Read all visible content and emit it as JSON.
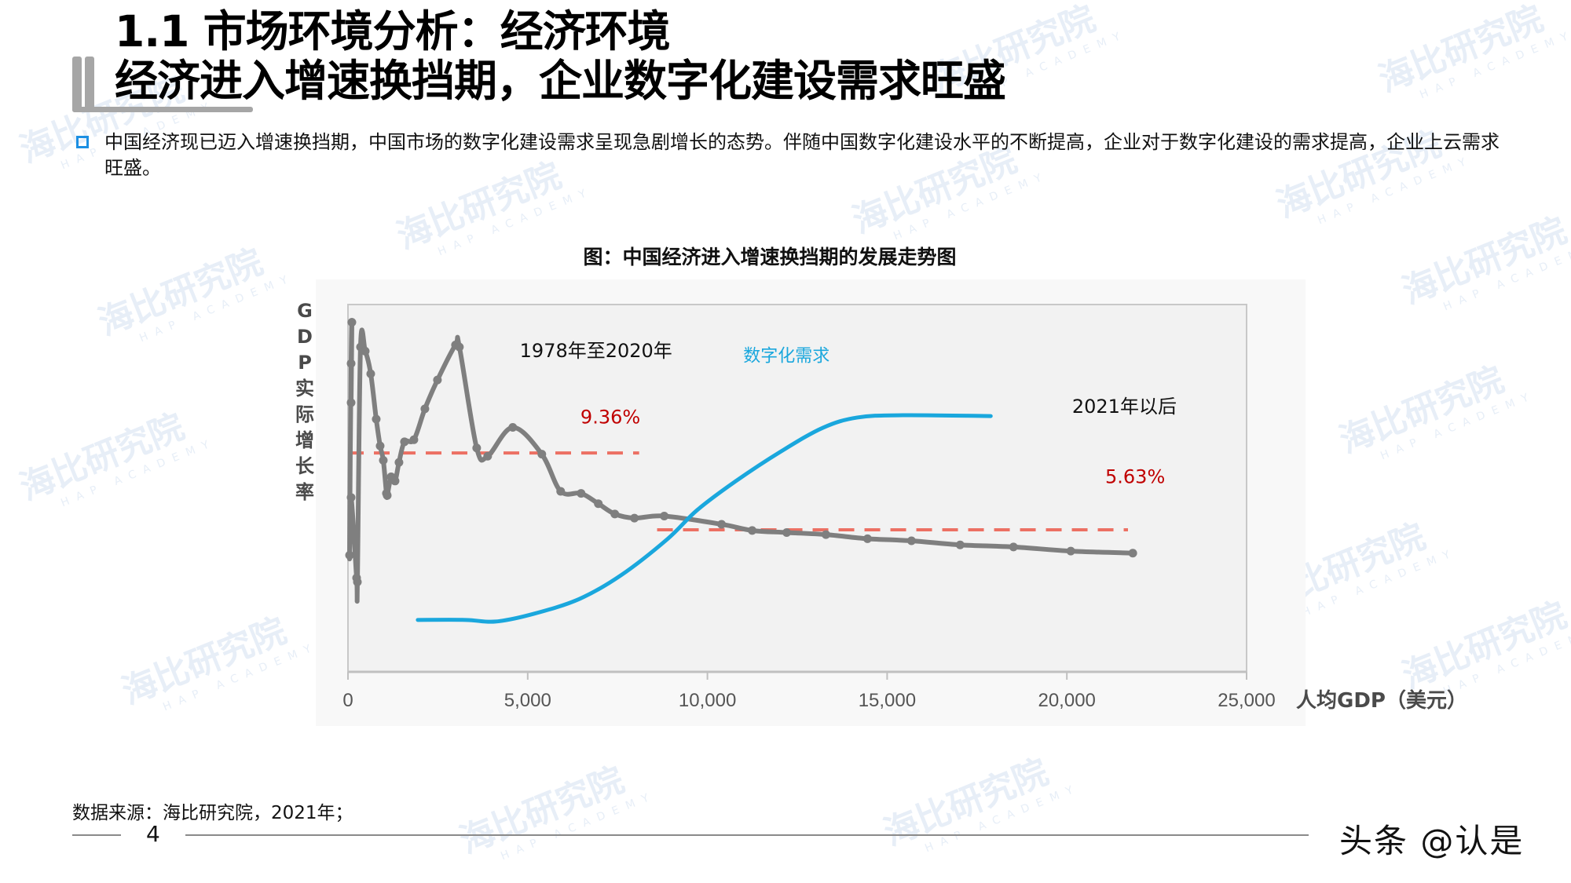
{
  "header": {
    "title_line1": "1.1 市场环境分析：经济环境",
    "title_line2": "经济进入增速换挡期，企业数字化建设需求旺盛"
  },
  "body": {
    "bullet_text": "中国经济现已迈入增速换挡期，中国市场的数字化建设需求呈现急剧增长的态势。伴随中国数字化建设水平的不断提高，企业对于数字化建设的需求提高，企业上云需求旺盛。"
  },
  "watermark": {
    "name": "海比研究院",
    "sub": "HAP ACADEMY"
  },
  "colors": {
    "gdp_line": "#7f7f7f",
    "demand_line": "#1aa7dd",
    "avg_line": "#ec7063",
    "avg_label": "#c00000",
    "bullet": "#1b8fe3",
    "plot_bg": "#f2f2f2"
  },
  "chart_data": {
    "type": "line",
    "title": "图：中国经济进入增速换挡期的发展走势图",
    "xlabel": "人均GDP（美元）",
    "ylabel": "GDP实际增长率",
    "ylabel_chars": [
      "G",
      "D",
      "P",
      "实",
      "际",
      "增",
      "长",
      "率"
    ],
    "xlim": [
      0,
      25000
    ],
    "ylim": [
      -1.26,
      16.56
    ],
    "x_ticks": [
      0,
      5000,
      10000,
      15000,
      20000,
      25000
    ],
    "x_tick_labels": [
      "0",
      "5,000",
      "10,000",
      "15,000",
      "20,000",
      "25,000"
    ],
    "grid": false,
    "series": [
      {
        "name": "GDP实际增长率",
        "color": "#7f7f7f",
        "markers": true,
        "x": [
          87,
          109,
          87,
          44,
          87,
          240,
          262,
          349,
          480,
          633,
          786,
          895,
          983,
          1070,
          1092,
          1201,
          1310,
          1419,
          1572,
          1834,
          2140,
          2489,
          2991,
          3100,
          3581,
          3886,
          4585,
          5393,
          5917,
          6485,
          6965,
          7424,
          7969,
          8799,
          10393,
          11245,
          12205,
          13297,
          14454,
          15677,
          17031,
          18515,
          20109,
          21834
        ],
        "y": [
          11.8,
          15.7,
          13.7,
          4.4,
          7.2,
          3.3,
          3.1,
          14.5,
          14.3,
          13.2,
          11.0,
          9.7,
          9.0,
          7.4,
          7.3,
          8.2,
          8.0,
          8.9,
          9.9,
          10.0,
          11.5,
          12.9,
          14.6,
          14.5,
          9.6,
          9.2,
          10.6,
          9.3,
          7.5,
          7.4,
          6.9,
          6.4,
          6.2,
          6.3,
          5.9,
          5.6,
          5.5,
          5.4,
          5.2,
          5.1,
          4.9,
          4.8,
          4.6,
          4.5
        ]
      },
      {
        "name": "数字化需求",
        "color": "#1aa7dd",
        "markers": false,
        "x": [
          1943,
          3275,
          4105,
          5175,
          6441,
          7598,
          8886,
          9716,
          10786,
          12052,
          13210,
          14170,
          15437,
          17882
        ],
        "y": [
          1.26,
          1.26,
          1.18,
          1.56,
          2.28,
          3.43,
          5.18,
          6.59,
          7.99,
          9.44,
          10.58,
          11.08,
          11.19,
          11.15
        ]
      }
    ],
    "reference_lines": [
      {
        "label": "9.36%",
        "y": 9.36,
        "x_from": 0,
        "x_to": 8100,
        "period": "1978年至2020年"
      },
      {
        "label": "5.63%",
        "y": 5.63,
        "x_from": 8600,
        "x_to": 21700,
        "period": "2021年以后"
      }
    ],
    "annotations": [
      {
        "text": "1978年至2020年",
        "x": 6900,
        "y": 14.0
      },
      {
        "text": "9.36%",
        "x": 7300,
        "y": 10.8
      },
      {
        "text": "数字化需求",
        "x": 12200,
        "y": 13.8
      },
      {
        "text": "2021年以后",
        "x": 21600,
        "y": 11.3
      },
      {
        "text": "5.63%",
        "x": 21900,
        "y": 7.9
      }
    ]
  },
  "footer": {
    "source": "数据来源：海比研究院，2021年；",
    "page_number": "4",
    "brand": "头条 @认是"
  }
}
